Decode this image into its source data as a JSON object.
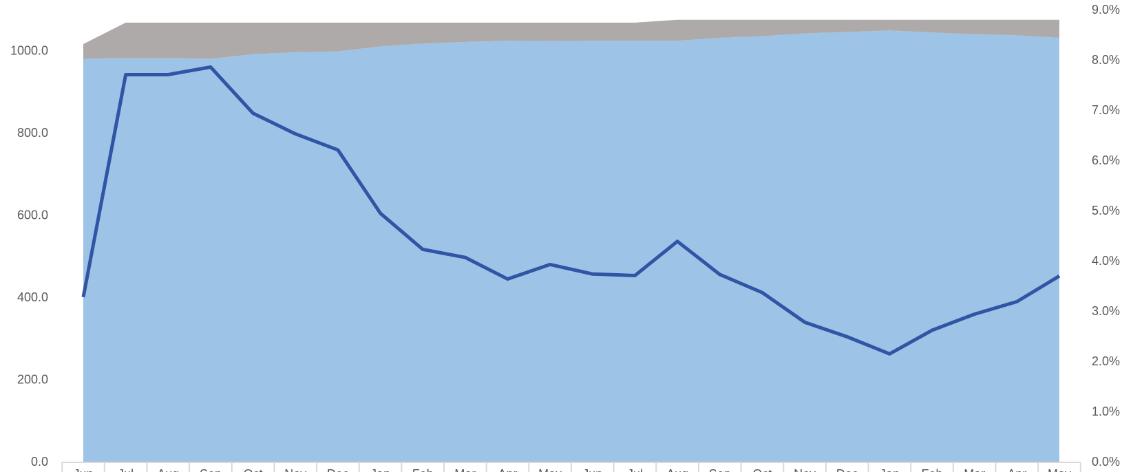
{
  "chart_data": {
    "type": "stacked-area-line",
    "categories": [
      "Jun",
      "Jul",
      "Aug",
      "Sep",
      "Oct",
      "Nov",
      "Dec",
      "Jan",
      "Feb",
      "Mar",
      "Apr",
      "May",
      "Jun",
      "Jul",
      "Aug",
      "Sep",
      "Oct",
      "Nov",
      "Dec",
      "Jan",
      "Feb",
      "Mar",
      "Apr",
      "May"
    ],
    "series": [
      {
        "type": "area",
        "color": "#9dc3e6",
        "values": [
          982,
          984,
          984,
          982,
          993,
          998,
          1000,
          1012,
          1019,
          1023,
          1026,
          1025,
          1026,
          1026,
          1026,
          1033,
          1037,
          1044,
          1047,
          1051,
          1046,
          1042,
          1039,
          1033
        ]
      },
      {
        "type": "area",
        "color": "#aeaaaa",
        "values": [
          36,
          86,
          86,
          88,
          77,
          72,
          70,
          58,
          51,
          47,
          44,
          45,
          44,
          44,
          51,
          44,
          40,
          33,
          30,
          26,
          31,
          35,
          38,
          44
        ]
      },
      {
        "type": "line",
        "axis": "y2",
        "color": "#2f55a4",
        "values": [
          3.29,
          7.72,
          7.72,
          7.87,
          6.95,
          6.54,
          6.22,
          4.96,
          4.24,
          4.08,
          3.65,
          3.94,
          3.75,
          3.72,
          4.4,
          3.74,
          3.38,
          2.79,
          2.5,
          2.16,
          2.63,
          2.95,
          3.2,
          3.71
        ]
      }
    ],
    "ylim": [
      0,
      1100
    ],
    "yticks": [
      {
        "value": 0,
        "label": "0.0"
      },
      {
        "value": 200,
        "label": "200.0"
      },
      {
        "value": 400,
        "label": "400.0"
      },
      {
        "value": 600,
        "label": "600.0"
      },
      {
        "value": 800,
        "label": "800.0"
      },
      {
        "value": 1000,
        "label": "1000.0"
      }
    ],
    "y2lim": [
      0,
      9
    ],
    "y2ticks": [
      {
        "value": 0,
        "label": "0.0%"
      },
      {
        "value": 1,
        "label": "1.0%"
      },
      {
        "value": 2,
        "label": "2.0%"
      },
      {
        "value": 3,
        "label": "3.0%"
      },
      {
        "value": 4,
        "label": "4.0%"
      },
      {
        "value": 5,
        "label": "5.0%"
      },
      {
        "value": 6,
        "label": "6.0%"
      },
      {
        "value": 7,
        "label": "7.0%"
      },
      {
        "value": 8,
        "label": "8.0%"
      },
      {
        "value": 9,
        "label": "9.0%"
      }
    ],
    "grid": false
  }
}
